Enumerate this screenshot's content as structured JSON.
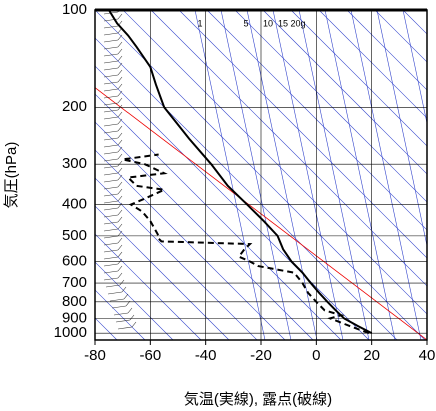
{
  "chart_data": {
    "type": "sounding",
    "xlabel": "気温(実線), 露点(破線)",
    "ylabel": "気圧(hPa)",
    "xlim": [
      -80,
      40
    ],
    "xticks": [
      -80,
      -60,
      -40,
      -20,
      0,
      20,
      40
    ],
    "ylim": [
      1050,
      100
    ],
    "yticks": [
      100,
      200,
      300,
      400,
      500,
      600,
      700,
      800,
      900,
      1000
    ],
    "log_y": true,
    "grid": true,
    "annotations": [
      "1",
      "5",
      "10",
      "15",
      "20g"
    ],
    "series": [
      {
        "color": "#000000",
        "dash": false,
        "pressure": [
          1000,
          950,
          900,
          850,
          800,
          750,
          700,
          650,
          600,
          550,
          500,
          450,
          400,
          350,
          300,
          250,
          200,
          170,
          150,
          130,
          120,
          110,
          100
        ],
        "values": [
          20,
          15,
          10,
          7,
          4,
          1,
          -2,
          -5,
          -9,
          -12,
          -14,
          -19,
          -25,
          -32,
          -38,
          -46,
          -55,
          -58,
          -60,
          -65,
          -68,
          -72,
          -75
        ]
      },
      {
        "color": "#000000",
        "dash": true,
        "pressure": [
          1000,
          950,
          900,
          880,
          850,
          800,
          750,
          700,
          650,
          620,
          600,
          580,
          550,
          530,
          520,
          510,
          500,
          450,
          420,
          400,
          380,
          360,
          350,
          330,
          320,
          300,
          290,
          280
        ],
        "values": [
          19,
          12,
          5,
          9,
          3,
          0,
          -3,
          -5,
          -8,
          -21,
          -24,
          -28,
          -26,
          -24,
          -56,
          -57,
          -57,
          -60,
          -63,
          -67,
          -61,
          -55,
          -65,
          -68,
          -55,
          -62,
          -70,
          -57
        ]
      }
    ]
  }
}
